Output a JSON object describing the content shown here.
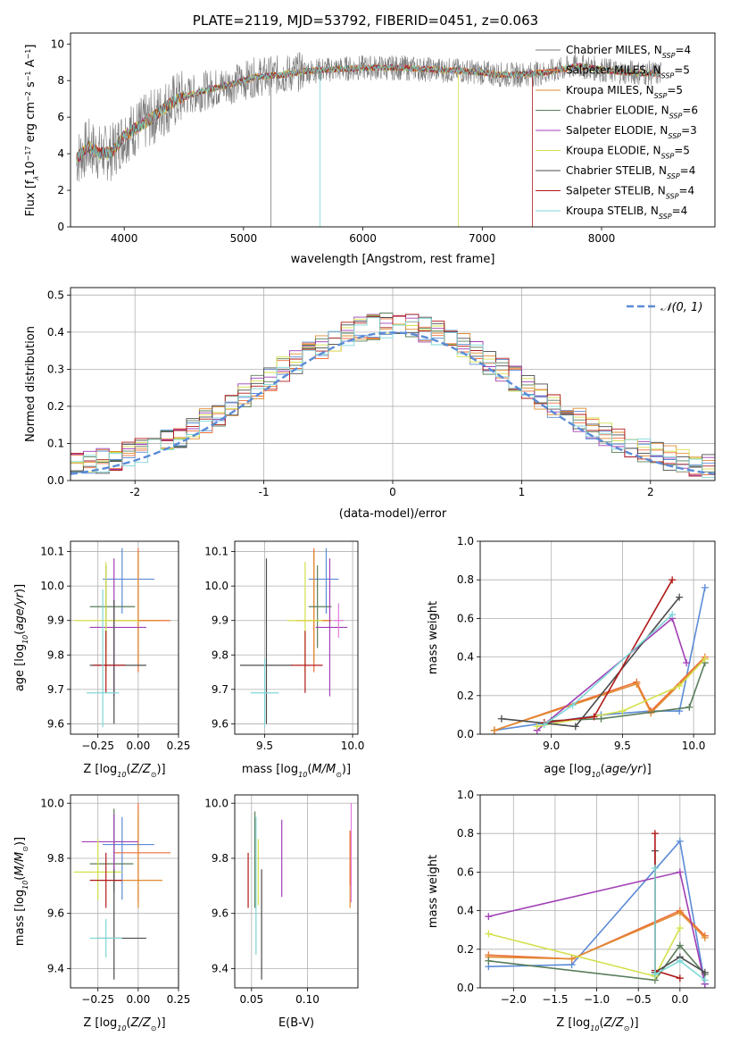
{
  "figure": {
    "title": "PLATE=2119, MJD=53792, FIBERID=0451, z=0.063"
  },
  "series_colors": [
    "#7b7b7b",
    "#ee6f3b",
    "#e08b2f",
    "#5a7d5a",
    "#a13fb5",
    "#d4e04a",
    "#4c4c4c",
    "#b01a1a",
    "#7fd6d6"
  ],
  "chart_data": [
    {
      "id": "spectrum",
      "type": "line",
      "title": "PLATE=2119, MJD=53792, FIBERID=0451, z=0.063",
      "xlabel": "wavelength [Angstrom, rest frame]",
      "ylabel": "Flux [f_λ 10^-17 erg cm^-2 s^-1 A^-1]",
      "xlim": [
        3550,
        8950
      ],
      "ylim": [
        0,
        10.6
      ],
      "xticks": [
        4000,
        5000,
        6000,
        7000,
        8000
      ],
      "yticks": [
        0,
        2,
        4,
        6,
        8,
        10
      ],
      "grid": false,
      "legend_position": "right",
      "continuum": {
        "x": [
          3600,
          3700,
          3800,
          3900,
          4000,
          4100,
          4200,
          4300,
          4400,
          4500,
          4700,
          4900,
          5100,
          5300,
          5500,
          5700,
          6000,
          6300,
          6600,
          6900,
          7200,
          7500,
          7800,
          8100,
          8400,
          8900
        ],
        "y": [
          3.7,
          4.4,
          4.0,
          4.1,
          5.0,
          5.4,
          5.8,
          6.3,
          6.8,
          7.1,
          7.5,
          7.8,
          8.2,
          8.3,
          8.5,
          8.6,
          8.7,
          8.7,
          8.6,
          8.5,
          8.3,
          8.4,
          8.8,
          8.5,
          8.4,
          8.2
        ]
      },
      "series": [
        {
          "label": "Chabrier MILES, N",
          "sub": "SSP",
          "tail": "=4"
        },
        {
          "label": "Salpeter MILES, N",
          "sub": "SSP",
          "tail": "=5"
        },
        {
          "label": "Kroupa MILES, N",
          "sub": "SSP",
          "tail": "=5"
        },
        {
          "label": "Chabrier ELODIE, N",
          "sub": "SSP",
          "tail": "=6"
        },
        {
          "label": "Salpeter ELODIE, N",
          "sub": "SSP",
          "tail": "=3"
        },
        {
          "label": "Kroupa ELODIE, N",
          "sub": "SSP",
          "tail": "=5"
        },
        {
          "label": "Chabrier STELIB, N",
          "sub": "SSP",
          "tail": "=4"
        },
        {
          "label": "Salpeter STELIB, N",
          "sub": "SSP",
          "tail": "=4"
        },
        {
          "label": "Kroupa STELIB, N",
          "sub": "SSP",
          "tail": "=4"
        }
      ]
    },
    {
      "id": "residuals",
      "type": "line",
      "xlabel": "(data-model)/error",
      "ylabel": "Normed distribution",
      "xlim": [
        -2.5,
        2.5
      ],
      "ylim": [
        0,
        0.52
      ],
      "xticks": [
        -2,
        -1,
        0,
        1,
        2
      ],
      "yticks": [
        0.0,
        0.1,
        0.2,
        0.3,
        0.4,
        0.5
      ],
      "grid": true,
      "legend_position": "top-right",
      "gaussian_label": "𝒩(0, 1)",
      "gaussian_color": "#5b8bd6"
    },
    {
      "id": "age_vs_Z",
      "type": "scatter",
      "xlabel": "Z [log10(Z/Z⊙)]",
      "ylabel": "age  [log10(age/yr)]",
      "xlim": [
        -0.42,
        0.25
      ],
      "ylim": [
        9.57,
        10.13
      ],
      "xticks": [
        -0.25,
        0.0,
        0.25
      ],
      "xticklabels": [
        "−0.25",
        "0.00",
        "0.25"
      ],
      "yticks": [
        9.6,
        9.7,
        9.8,
        9.9,
        10.0,
        10.1
      ],
      "grid": true,
      "points": [
        {
          "x": -0.1,
          "y": 10.02,
          "xerr": [
            0.12,
            0.2
          ],
          "yerr": [
            0.1,
            0.09
          ],
          "c": "#5b8bd6"
        },
        {
          "x": 0.0,
          "y": 9.9,
          "xerr": [
            0.18,
            0.2
          ],
          "yerr": [
            0.15,
            0.21
          ],
          "c": "#ee6f3b"
        },
        {
          "x": 0.0,
          "y": 9.9,
          "xerr": [
            0.16,
            0.14
          ],
          "yerr": [
            0.12,
            0.2
          ],
          "c": "#e08b2f"
        },
        {
          "x": -0.2,
          "y": 9.94,
          "xerr": [
            0.1,
            0.18
          ],
          "yerr": [
            0.12,
            0.12
          ],
          "c": "#5a7d5a"
        },
        {
          "x": -0.15,
          "y": 9.88,
          "xerr": [
            0.15,
            0.2
          ],
          "yerr": [
            0.2,
            0.2
          ],
          "c": "#a13fb5"
        },
        {
          "x": -0.2,
          "y": 9.9,
          "xerr": [
            0.2,
            0.2
          ],
          "yerr": [
            0.15,
            0.17
          ],
          "c": "#d4e04a"
        },
        {
          "x": -0.15,
          "y": 9.77,
          "xerr": [
            0.15,
            0.2
          ],
          "yerr": [
            0.17,
            0.19
          ],
          "c": "#4c4c4c"
        },
        {
          "x": -0.2,
          "y": 9.77,
          "xerr": [
            0.08,
            0.12
          ],
          "yerr": [
            0.08,
            0.1
          ],
          "c": "#b01a1a"
        },
        {
          "x": -0.22,
          "y": 9.69,
          "xerr": [
            0.1,
            0.1
          ],
          "yerr": [
            0.1,
            0.3
          ],
          "c": "#7fd6d6"
        }
      ]
    },
    {
      "id": "age_vs_mass",
      "type": "scatter",
      "xlabel": "mass [log10(M/M⊙)]",
      "xlim": [
        9.33,
        10.03
      ],
      "ylim": [
        9.57,
        10.13
      ],
      "xticks": [
        9.5,
        10.0
      ],
      "xticklabels": [
        "9.5",
        "10.0"
      ],
      "yticks": [
        9.6,
        9.7,
        9.8,
        9.9,
        10.0,
        10.1
      ],
      "grid": true,
      "points": [
        {
          "x": 9.85,
          "y": 10.02,
          "xerr": [
            0.1,
            0.07
          ],
          "yerr": [
            0.1,
            0.09
          ],
          "c": "#5b8bd6"
        },
        {
          "x": 9.78,
          "y": 9.9,
          "xerr": [
            0.1,
            0.1
          ],
          "yerr": [
            0.15,
            0.21
          ],
          "c": "#ee6f3b"
        },
        {
          "x": 9.78,
          "y": 9.9,
          "xerr": [
            0.1,
            0.1
          ],
          "yerr": [
            0.12,
            0.2
          ],
          "c": "#e08b2f"
        },
        {
          "x": 9.8,
          "y": 9.94,
          "xerr": [
            0.05,
            0.08
          ],
          "yerr": [
            0.12,
            0.12
          ],
          "c": "#5a7d5a"
        },
        {
          "x": 9.87,
          "y": 9.88,
          "xerr": [
            0.08,
            0.1
          ],
          "yerr": [
            0.2,
            0.2
          ],
          "c": "#a13fb5"
        },
        {
          "x": 9.73,
          "y": 9.9,
          "xerr": [
            0.1,
            0.1
          ],
          "yerr": [
            0.15,
            0.17
          ],
          "c": "#d4e04a"
        },
        {
          "x": 9.51,
          "y": 9.77,
          "xerr": [
            0.15,
            0.15
          ],
          "yerr": [
            0.17,
            0.31
          ],
          "c": "#4c4c4c"
        },
        {
          "x": 9.73,
          "y": 9.77,
          "xerr": [
            0.08,
            0.1
          ],
          "yerr": [
            0.08,
            0.1
          ],
          "c": "#b01a1a"
        },
        {
          "x": 9.5,
          "y": 9.69,
          "xerr": [
            0.08,
            0.08
          ],
          "yerr": [
            0.1,
            0.1
          ],
          "c": "#7fd6d6"
        },
        {
          "x": 9.92,
          "y": 9.9,
          "xerr": [
            0.03,
            0.03
          ],
          "yerr": [
            0.05,
            0.05
          ],
          "c": "#e37ae0"
        }
      ]
    },
    {
      "id": "weight_vs_age",
      "type": "line",
      "xlabel": "age  [log10(age/yr)]",
      "ylabel": "mass weight",
      "xlim": [
        8.5,
        10.15
      ],
      "ylim": [
        0,
        1.0
      ],
      "xticks": [
        9.0,
        9.5,
        10.0
      ],
      "xticklabels": [
        "9.0",
        "9.5",
        "10.0"
      ],
      "yticks": [
        0.0,
        0.2,
        0.4,
        0.6,
        0.8,
        1.0
      ],
      "grid": true,
      "series": [
        {
          "c": "#5b8bd6",
          "pts": [
            [
              8.6,
              0.02
            ],
            [
              9.35,
              0.1
            ],
            [
              9.7,
              0.12
            ],
            [
              9.9,
              0.12
            ],
            [
              10.08,
              0.76
            ]
          ]
        },
        {
          "c": "#ee6f3b",
          "pts": [
            [
              8.6,
              0.02
            ],
            [
              9.6,
              0.27
            ],
            [
              9.7,
              0.12
            ],
            [
              10.08,
              0.4
            ]
          ]
        },
        {
          "c": "#e08b2f",
          "pts": [
            [
              8.6,
              0.02
            ],
            [
              9.6,
              0.26
            ],
            [
              9.7,
              0.11
            ],
            [
              10.08,
              0.39
            ]
          ]
        },
        {
          "c": "#5a7d5a",
          "pts": [
            [
              9.0,
              0.07
            ],
            [
              9.35,
              0.08
            ],
            [
              9.97,
              0.14
            ],
            [
              10.08,
              0.37
            ]
          ]
        },
        {
          "c": "#a13fb5",
          "pts": [
            [
              8.9,
              0.02
            ],
            [
              9.85,
              0.6
            ],
            [
              9.95,
              0.37
            ]
          ]
        },
        {
          "c": "#d4e04a",
          "pts": [
            [
              8.9,
              0.04
            ],
            [
              9.5,
              0.12
            ],
            [
              9.9,
              0.25
            ],
            [
              10.08,
              0.39
            ]
          ]
        },
        {
          "c": "#4c4c4c",
          "pts": [
            [
              8.65,
              0.08
            ],
            [
              9.17,
              0.04
            ],
            [
              9.9,
              0.71
            ]
          ]
        },
        {
          "c": "#b01a1a",
          "pts": [
            [
              8.95,
              0.06
            ],
            [
              9.3,
              0.09
            ],
            [
              9.85,
              0.8
            ]
          ]
        },
        {
          "c": "#7fd6d6",
          "pts": [
            [
              8.95,
              0.05
            ],
            [
              9.15,
              0.15
            ],
            [
              9.85,
              0.62
            ]
          ]
        }
      ]
    },
    {
      "id": "mass_vs_Z",
      "type": "scatter",
      "xlabel": "Z [log10(Z/Z⊙)]",
      "ylabel": "mass [log10(M/M⊙)]",
      "xlim": [
        -0.42,
        0.25
      ],
      "ylim": [
        9.33,
        10.03
      ],
      "xticks": [
        -0.25,
        0.0,
        0.25
      ],
      "xticklabels": [
        "−0.25",
        "0.00",
        "0.25"
      ],
      "yticks": [
        9.4,
        9.6,
        9.8,
        10.0
      ],
      "grid": true,
      "points": [
        {
          "x": -0.1,
          "y": 9.85,
          "xerr": [
            0.12,
            0.2
          ],
          "yerr": [
            0.2,
            0.1
          ],
          "c": "#5b8bd6"
        },
        {
          "x": 0.0,
          "y": 9.82,
          "xerr": [
            0.15,
            0.2
          ],
          "yerr": [
            0.18,
            0.18
          ],
          "c": "#ee6f3b"
        },
        {
          "x": 0.0,
          "y": 9.72,
          "xerr": [
            0.15,
            0.15
          ],
          "yerr": [
            0.1,
            0.25
          ],
          "c": "#e08b2f"
        },
        {
          "x": -0.15,
          "y": 9.78,
          "xerr": [
            0.15,
            0.12
          ],
          "yerr": [
            0.1,
            0.2
          ],
          "c": "#5a7d5a"
        },
        {
          "x": -0.15,
          "y": 9.86,
          "xerr": [
            0.2,
            0.15
          ],
          "yerr": [
            0.1,
            0.1
          ],
          "c": "#a13fb5"
        },
        {
          "x": -0.25,
          "y": 9.75,
          "xerr": [
            0.15,
            0.15
          ],
          "yerr": [
            0.1,
            0.12
          ],
          "c": "#d4e04a"
        },
        {
          "x": -0.15,
          "y": 9.51,
          "xerr": [
            0.1,
            0.2
          ],
          "yerr": [
            0.15,
            0.25
          ],
          "c": "#4c4c4c"
        },
        {
          "x": -0.2,
          "y": 9.72,
          "xerr": [
            0.1,
            0.1
          ],
          "yerr": [
            0.1,
            0.1
          ],
          "c": "#b01a1a"
        },
        {
          "x": -0.2,
          "y": 9.51,
          "xerr": [
            0.1,
            0.1
          ],
          "yerr": [
            0.07,
            0.07
          ],
          "c": "#7fd6d6"
        }
      ]
    },
    {
      "id": "mass_vs_ebv",
      "type": "scatter",
      "xlabel": "E(B-V)",
      "xlim": [
        0.035,
        0.145
      ],
      "ylim": [
        9.33,
        10.03
      ],
      "xticks": [
        0.05,
        0.1
      ],
      "xticklabels": [
        "0.05",
        "0.10"
      ],
      "yticks": [
        9.4,
        9.6,
        9.8,
        10.0
      ],
      "grid": true,
      "points": [
        {
          "x": 0.047,
          "y": 9.72,
          "yerr": [
            0.1,
            0.1
          ],
          "c": "#b01a1a"
        },
        {
          "x": 0.053,
          "y": 9.72,
          "yerr": [
            0.1,
            0.25
          ],
          "c": "#5a7d5a"
        },
        {
          "x": 0.054,
          "y": 9.7,
          "yerr": [
            0.25,
            0.25
          ],
          "c": "#7fd6d6"
        },
        {
          "x": 0.056,
          "y": 9.75,
          "yerr": [
            0.12,
            0.12
          ],
          "c": "#d4e04a"
        },
        {
          "x": 0.059,
          "y": 9.51,
          "yerr": [
            0.15,
            0.25
          ],
          "c": "#4c4c4c"
        },
        {
          "x": 0.077,
          "y": 9.8,
          "yerr": [
            0.14,
            0.14
          ],
          "c": "#a13fb5"
        },
        {
          "x": 0.138,
          "y": 9.72,
          "yerr": [
            0.1,
            0.18
          ],
          "c": "#e08b2f"
        },
        {
          "x": 0.139,
          "y": 9.82,
          "yerr": [
            0.18,
            0.18
          ],
          "c": "#e37ae0"
        },
        {
          "x": 0.138,
          "y": 9.8,
          "yerr": [
            0.1,
            0.1
          ],
          "c": "#ee6f3b"
        }
      ]
    },
    {
      "id": "weight_vs_Z",
      "type": "line",
      "xlabel": "Z [log10(Z/Z⊙)]",
      "ylabel": "mass weight",
      "xlim": [
        -2.4,
        0.42
      ],
      "ylim": [
        0,
        1.0
      ],
      "xticks": [
        -2.0,
        -1.5,
        -1.0,
        -0.5,
        0.0
      ],
      "xticklabels": [
        "−2.0",
        "−1.5",
        "−1.0",
        "−0.5",
        "0.0"
      ],
      "yticks": [
        0.0,
        0.2,
        0.4,
        0.6,
        0.8,
        1.0
      ],
      "grid": true,
      "series": [
        {
          "c": "#5b8bd6",
          "pts": [
            [
              -2.3,
              0.11
            ],
            [
              -1.3,
              0.12
            ],
            [
              0.0,
              0.76
            ],
            [
              0.3,
              0.02
            ]
          ]
        },
        {
          "c": "#ee6f3b",
          "pts": [
            [
              -2.3,
              0.17
            ],
            [
              -1.3,
              0.15
            ],
            [
              0.0,
              0.4
            ],
            [
              0.3,
              0.27
            ]
          ]
        },
        {
          "c": "#e08b2f",
          "pts": [
            [
              -2.3,
              0.16
            ],
            [
              -1.3,
              0.15
            ],
            [
              0.0,
              0.39
            ],
            [
              0.3,
              0.26
            ]
          ]
        },
        {
          "c": "#5a7d5a",
          "pts": [
            [
              -2.3,
              0.14
            ],
            [
              -0.3,
              0.04
            ],
            [
              0.0,
              0.22
            ],
            [
              0.3,
              0.07
            ]
          ]
        },
        {
          "c": "#a13fb5",
          "pts": [
            [
              -2.3,
              0.37
            ],
            [
              0.0,
              0.6
            ],
            [
              0.3,
              0.02
            ]
          ]
        },
        {
          "c": "#d4e04a",
          "pts": [
            [
              -2.3,
              0.28
            ],
            [
              -0.3,
              0.06
            ],
            [
              0.0,
              0.31
            ]
          ]
        },
        {
          "c": "#4c4c4c",
          "pts": [
            [
              -0.3,
              0.71
            ],
            [
              -0.3,
              0.08
            ],
            [
              0.0,
              0.16
            ],
            [
              0.3,
              0.08
            ]
          ]
        },
        {
          "c": "#b01a1a",
          "pts": [
            [
              -0.3,
              0.8
            ],
            [
              -0.3,
              0.09
            ],
            [
              0.0,
              0.05
            ]
          ]
        },
        {
          "c": "#7fd6d6",
          "pts": [
            [
              -0.3,
              0.62
            ],
            [
              -0.3,
              0.07
            ],
            [
              0.0,
              0.14
            ],
            [
              0.3,
              0.04
            ]
          ]
        }
      ]
    }
  ]
}
